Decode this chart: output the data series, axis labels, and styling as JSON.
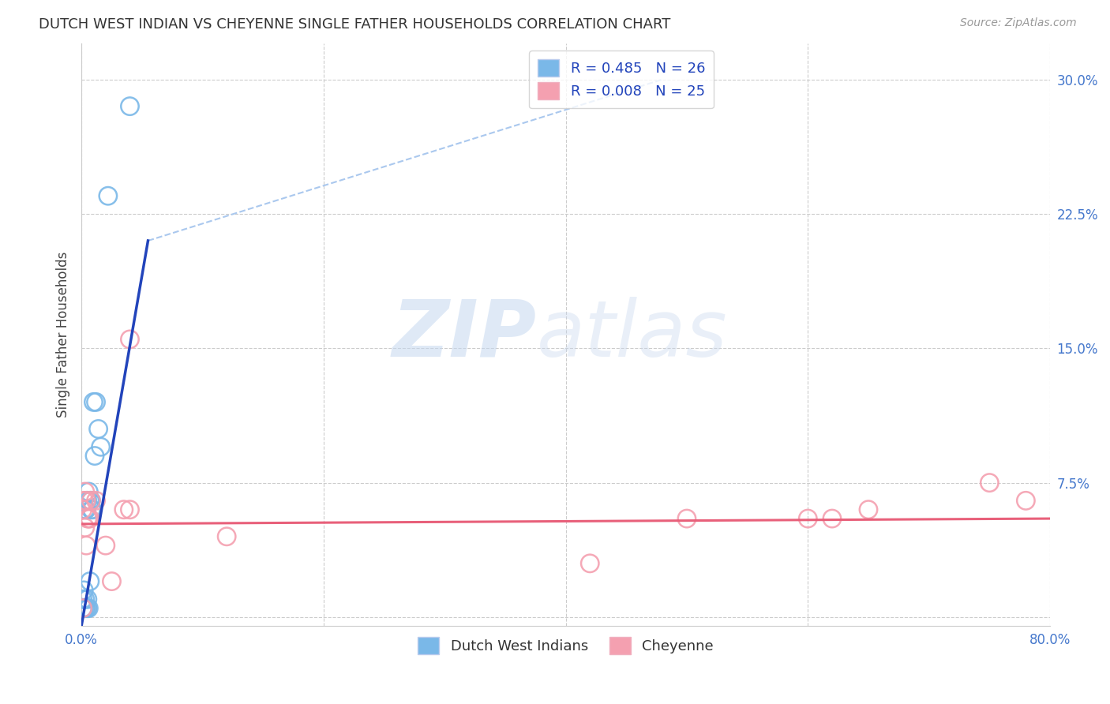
{
  "title": "DUTCH WEST INDIAN VS CHEYENNE SINGLE FATHER HOUSEHOLDS CORRELATION CHART",
  "source": "Source: ZipAtlas.com",
  "ylabel": "Single Father Households",
  "xlim": [
    0.0,
    0.8
  ],
  "ylim": [
    -0.005,
    0.32
  ],
  "xticks": [
    0.0,
    0.2,
    0.4,
    0.6,
    0.8
  ],
  "xticklabels": [
    "0.0%",
    "",
    "",
    "",
    "80.0%"
  ],
  "yticks": [
    0.0,
    0.075,
    0.15,
    0.225,
    0.3
  ],
  "yticklabels": [
    "",
    "7.5%",
    "15.0%",
    "22.5%",
    "30.0%"
  ],
  "grid_color": "#cccccc",
  "background_color": "#ffffff",
  "legend_r1": "R = 0.485",
  "legend_n1": "N = 26",
  "legend_r2": "R = 0.008",
  "legend_n2": "N = 25",
  "color_blue": "#7ab8e8",
  "color_pink": "#f4a0b0",
  "line_blue": "#2244bb",
  "line_pink": "#e8607a",
  "line_dashed": "#aac8ee",
  "watermark_zip": "ZIP",
  "watermark_atlas": "atlas",
  "dutch_x": [
    0.001,
    0.001,
    0.002,
    0.002,
    0.003,
    0.003,
    0.003,
    0.004,
    0.004,
    0.005,
    0.005,
    0.005,
    0.006,
    0.006,
    0.007,
    0.007,
    0.008,
    0.008,
    0.009,
    0.01,
    0.011,
    0.012,
    0.014,
    0.016,
    0.022,
    0.04
  ],
  "dutch_y": [
    0.005,
    0.01,
    0.005,
    0.015,
    0.005,
    0.01,
    0.06,
    0.005,
    0.06,
    0.005,
    0.065,
    0.01,
    0.005,
    0.07,
    0.02,
    0.065,
    0.065,
    0.06,
    0.06,
    0.12,
    0.09,
    0.12,
    0.105,
    0.095,
    0.235,
    0.285
  ],
  "cheyenne_x": [
    0.001,
    0.001,
    0.002,
    0.003,
    0.003,
    0.004,
    0.004,
    0.005,
    0.006,
    0.007,
    0.008,
    0.012,
    0.02,
    0.025,
    0.035,
    0.04,
    0.04,
    0.12,
    0.42,
    0.5,
    0.6,
    0.62,
    0.65,
    0.75,
    0.78
  ],
  "cheyenne_y": [
    0.005,
    0.06,
    0.065,
    0.05,
    0.07,
    0.04,
    0.065,
    0.055,
    0.055,
    0.055,
    0.065,
    0.065,
    0.04,
    0.02,
    0.06,
    0.06,
    0.155,
    0.045,
    0.03,
    0.055,
    0.055,
    0.055,
    0.06,
    0.075,
    0.065
  ],
  "blue_line_x": [
    0.0,
    0.055
  ],
  "blue_line_y": [
    -0.005,
    0.21
  ],
  "dashed_line_x": [
    0.055,
    0.48
  ],
  "dashed_line_y": [
    0.21,
    0.3
  ],
  "pink_line_x": [
    0.0,
    0.8
  ],
  "pink_line_y": [
    0.052,
    0.055
  ]
}
